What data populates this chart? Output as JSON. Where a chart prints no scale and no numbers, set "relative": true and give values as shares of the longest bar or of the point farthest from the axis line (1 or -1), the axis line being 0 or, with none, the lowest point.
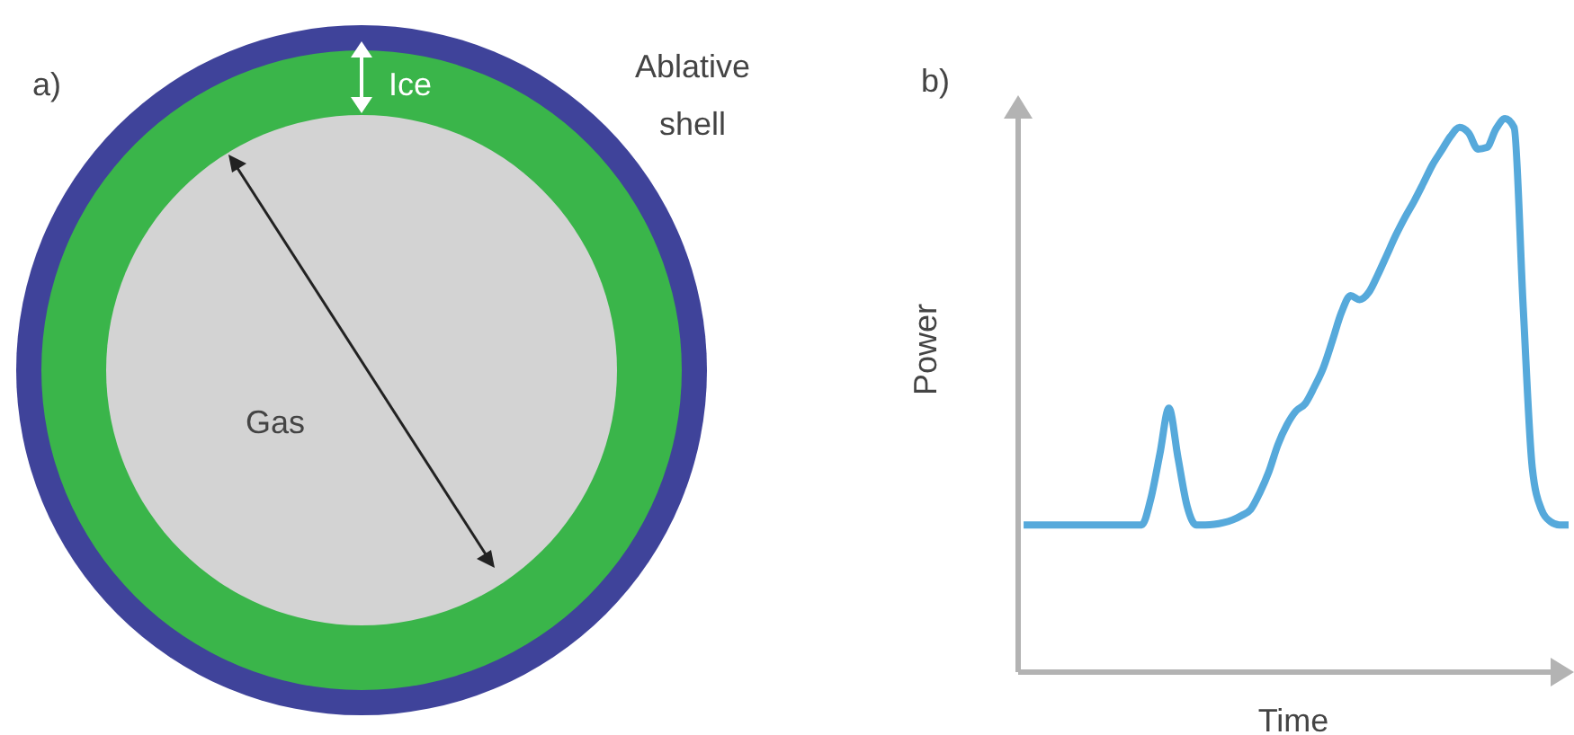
{
  "chart_data": [
    {
      "type": "other",
      "title": "a)",
      "annotations": [
        "Ice",
        "Ablative shell",
        "Gas"
      ]
    },
    {
      "type": "line",
      "title": "b)",
      "xlabel": "Time",
      "ylabel": "Power",
      "relative": true,
      "legend": false,
      "grid": false,
      "marker": "none",
      "line_style": "solid",
      "categories": [
        null,
        null,
        null,
        null,
        null,
        null,
        null,
        null,
        null,
        null,
        null,
        null,
        null,
        null,
        null,
        null,
        null,
        null,
        null,
        null,
        null,
        null,
        null,
        null,
        null,
        null,
        null,
        null,
        null,
        null,
        null,
        null,
        null,
        null,
        null,
        null,
        null,
        null,
        null,
        null,
        null,
        null,
        null,
        null,
        null,
        null,
        null,
        null,
        null,
        null,
        null,
        null,
        null,
        null,
        null,
        null,
        null,
        null,
        null,
        null,
        null
      ],
      "series": [
        {
          "color": "#56a9db",
          "values": [
            0.266,
            0.266,
            0.266,
            0.266,
            0.266,
            0.266,
            0.266,
            0.266,
            0.266,
            0.266,
            0.266,
            0.266,
            0.266,
            0.266,
            0.313,
            0.394,
            0.477,
            0.387,
            0.3,
            0.266,
            0.266,
            0.267,
            0.27,
            0.275,
            0.283,
            0.294,
            0.324,
            0.362,
            0.411,
            0.447,
            0.472,
            0.485,
            0.515,
            0.55,
            0.599,
            0.65,
            0.68,
            0.673,
            0.686,
            0.718,
            0.754,
            0.79,
            0.822,
            0.851,
            0.883,
            0.916,
            0.942,
            0.968,
            0.984,
            0.974,
            0.945,
            0.948,
            0.981,
            1,
            0.984,
            0.66,
            0.369,
            0.294,
            0.272,
            0.266,
            0.266
          ]
        }
      ]
    }
  ]
}
